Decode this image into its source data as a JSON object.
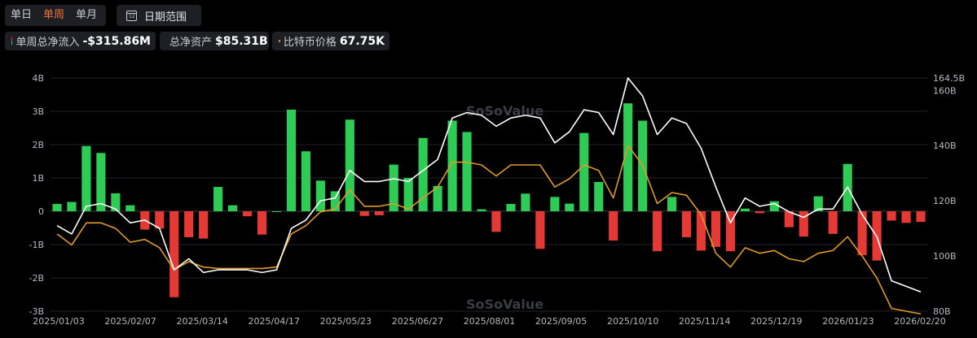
{
  "tabs": [
    {
      "label": "单日",
      "active": false
    },
    {
      "label": "单周",
      "active": true
    },
    {
      "label": "单月",
      "active": false
    }
  ],
  "date_range": {
    "label": "日期范围",
    "icon": "calendar-icon",
    "icon_text": "12"
  },
  "legend": [
    {
      "label": "单周总净流入",
      "value": "-$315.86M"
    },
    {
      "label": "总净资产",
      "value": "$85.31B",
      "color": "#ffffff"
    },
    {
      "label": "比特币价格",
      "value": "67.75K",
      "color": "#e09a2a"
    }
  ],
  "watermark": "SoSoValue",
  "chart_data": {
    "type": "bar+line",
    "x_ticks": [
      "2025/01/03",
      "2025/02/07",
      "2025/03/14",
      "2025/04/17",
      "2025/05/23",
      "2025/06/27",
      "2025/08/01",
      "2025/09/05",
      "2025/10/10",
      "2025/11/14",
      "2025/12/19",
      "2026/01/23",
      "2026/02/20"
    ],
    "left_axis": {
      "ticks": [
        "4B",
        "3B",
        "2B",
        "1B",
        "0",
        "-1B",
        "-2B",
        "-3B"
      ],
      "ylim": [
        -3,
        4
      ],
      "unit": "B"
    },
    "right_axis": {
      "ticks": [
        "164.5B",
        "160B",
        "140B",
        "120B",
        "100B",
        "80B"
      ],
      "ylim": [
        80,
        164.5
      ],
      "unit": "B"
    },
    "colors": {
      "positive": "#2ecc55",
      "negative": "#e53935",
      "assets": "#ffffff",
      "btc": "#e09a2a"
    },
    "series": [
      {
        "name": "单周总净流入",
        "kind": "bar",
        "values": [
          0.22,
          0.28,
          1.96,
          1.75,
          0.54,
          0.18,
          -0.55,
          -0.52,
          -2.58,
          -0.78,
          -0.82,
          0.73,
          0.18,
          -0.15,
          -0.7,
          0.0,
          3.05,
          1.8,
          0.92,
          0.6,
          2.75,
          -0.14,
          -0.12,
          1.4,
          1.0,
          2.2,
          0.76,
          2.72,
          2.38,
          0.06,
          -0.62,
          0.22,
          0.53,
          -1.13,
          0.43,
          0.23,
          2.35,
          0.88,
          -0.88,
          3.24,
          2.72,
          -1.2,
          0.43,
          -0.78,
          -1.18,
          -1.07,
          -1.2,
          0.08,
          -0.06,
          0.3,
          -0.48,
          -0.76,
          0.45,
          -0.68,
          1.42,
          -1.32,
          -1.48,
          -0.28,
          -0.35,
          -0.32
        ]
      },
      {
        "name": "总净资产",
        "kind": "line",
        "values": [
          111,
          108,
          118,
          119,
          117,
          112,
          113,
          110,
          95,
          99,
          94,
          95,
          95,
          95,
          94,
          95,
          110,
          113,
          120,
          121,
          131,
          127,
          127,
          128,
          127,
          131,
          135,
          150,
          152,
          151,
          147,
          150,
          151,
          150,
          141,
          145,
          153,
          152,
          144,
          164.5,
          158,
          144,
          150,
          148,
          139,
          125,
          112,
          121,
          118,
          119,
          116,
          114,
          117,
          117,
          125,
          115,
          107,
          91,
          89,
          87
        ]
      },
      {
        "name": "比特币价格",
        "kind": "line",
        "values": [
          108,
          104,
          112,
          112,
          110,
          105,
          106,
          103,
          95,
          98,
          96,
          95.5,
          95.5,
          95.5,
          95.5,
          96,
          108,
          111,
          116,
          117,
          124,
          118,
          118,
          119,
          117,
          121,
          125,
          134,
          134,
          133,
          129,
          133,
          133,
          133,
          125,
          128,
          133,
          131,
          121,
          140,
          133,
          119,
          123,
          122,
          115,
          101,
          96,
          103,
          101,
          102,
          99,
          98,
          101,
          102,
          107,
          100,
          92,
          81,
          80,
          79
        ]
      }
    ]
  }
}
